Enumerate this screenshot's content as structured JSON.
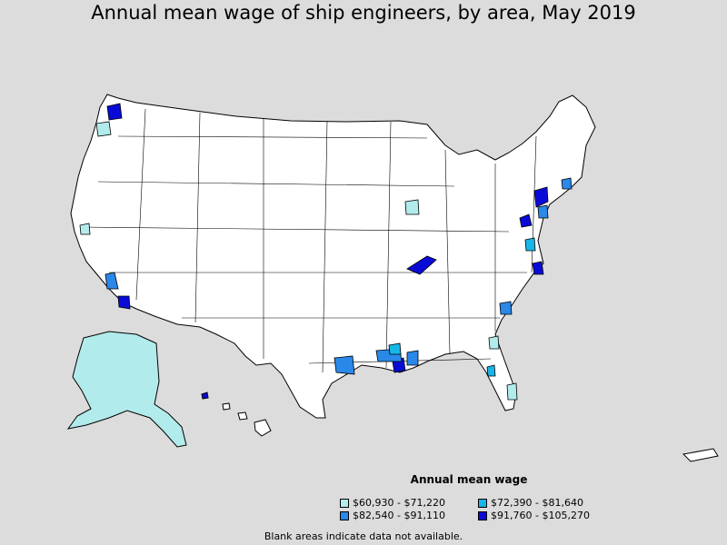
{
  "title": "Annual mean wage of ship engineers, by area, May 2019",
  "legend": {
    "title": "Annual mean wage",
    "items": [
      {
        "label": "$60,930 - $71,220",
        "color": "#b2ebeb"
      },
      {
        "label": "$82,540 - $91,110",
        "color": "#2a88e8"
      },
      {
        "label": "$72,390 - $81,640",
        "color": "#17b6e8"
      },
      {
        "label": "$91,760 - $105,270",
        "color": "#0a0ad6"
      }
    ]
  },
  "footnote": "Blank areas indicate data not available.",
  "colors": {
    "background": "#dcdcdc",
    "land": "#ffffff",
    "border": "#000000"
  }
}
